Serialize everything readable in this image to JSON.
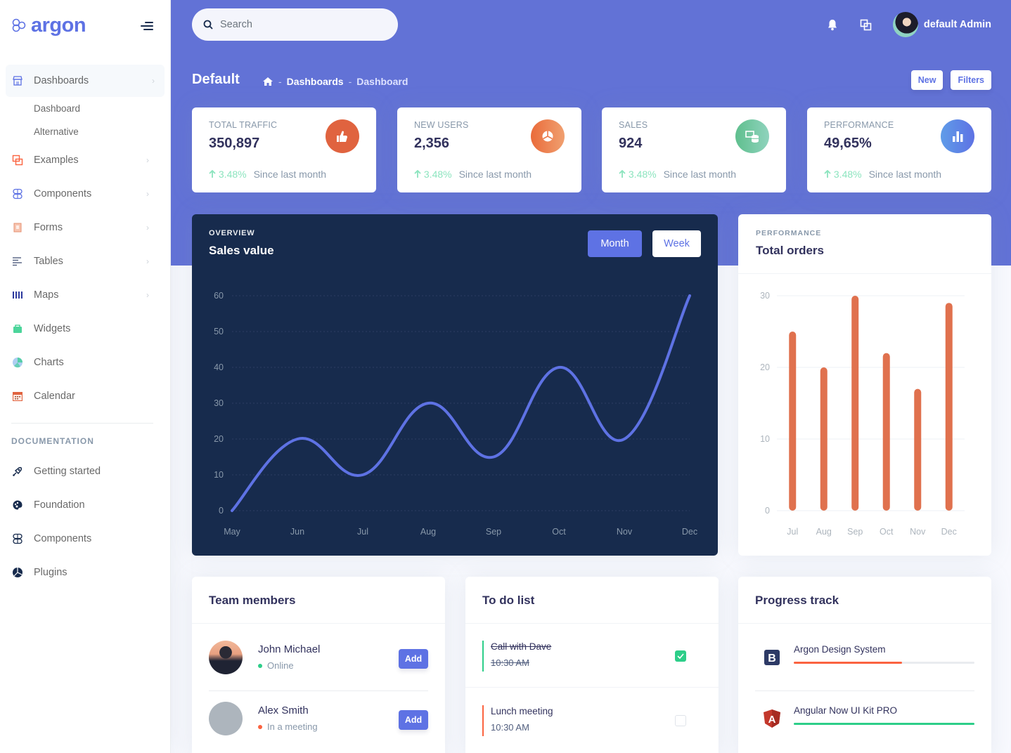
{
  "brand": {
    "name": "argon",
    "color": "#5e72e4"
  },
  "sidebar": {
    "items": [
      {
        "label": "Dashboards",
        "icon": "shop-icon",
        "has_chevron": true,
        "active": true,
        "children": [
          {
            "label": "Dashboard"
          },
          {
            "label": "Alternative"
          }
        ]
      },
      {
        "label": "Examples",
        "icon": "ungroup-icon",
        "has_chevron": true
      },
      {
        "label": "Components",
        "icon": "components-icon",
        "has_chevron": true
      },
      {
        "label": "Forms",
        "icon": "forms-icon",
        "has_chevron": true
      },
      {
        "label": "Tables",
        "icon": "align-left-icon",
        "has_chevron": true
      },
      {
        "label": "Maps",
        "icon": "map-icon",
        "has_chevron": true
      },
      {
        "label": "Widgets",
        "icon": "archive-icon",
        "has_chevron": false
      },
      {
        "label": "Charts",
        "icon": "pie-chart-icon",
        "has_chevron": false
      },
      {
        "label": "Calendar",
        "icon": "calendar-icon",
        "has_chevron": false
      }
    ],
    "documentation_heading": "DOCUMENTATION",
    "doc_items": [
      {
        "label": "Getting started",
        "icon": "spaceship-icon"
      },
      {
        "label": "Foundation",
        "icon": "palette-icon"
      },
      {
        "label": "Components",
        "icon": "ui-components-icon"
      },
      {
        "label": "Plugins",
        "icon": "plugins-icon"
      }
    ]
  },
  "header": {
    "search_placeholder": "Search",
    "user_name": "default Admin",
    "page_title": "Default",
    "breadcrumb": [
      "Dashboards",
      "Dashboard"
    ],
    "buttons": {
      "new": "New",
      "filters": "Filters"
    },
    "bg_color": "#6272d6"
  },
  "stats": [
    {
      "title": "TOTAL TRAFFIC",
      "value": "350,897",
      "change": "3.48%",
      "since": "Since last month",
      "icon": "active-40-icon",
      "color": "#e0633f"
    },
    {
      "title": "NEW USERS",
      "value": "2,356",
      "change": "3.48%",
      "since": "Since last month",
      "icon": "chart-pie-icon",
      "color": "#f0703a"
    },
    {
      "title": "SALES",
      "value": "924",
      "change": "3.48%",
      "since": "Since last month",
      "icon": "money-coins-icon",
      "color": "#2dce89"
    },
    {
      "title": "PERFORMANCE",
      "value": "49,65%",
      "change": "3.48%",
      "since": "Since last month",
      "icon": "chart-bar-icon",
      "color": "#5e72e4"
    }
  ],
  "sales_card": {
    "pretitle": "OVERVIEW",
    "title": "Sales value",
    "toggle": {
      "month": "Month",
      "week": "Week",
      "selected": "Month"
    }
  },
  "orders_card": {
    "pretitle": "PERFORMANCE",
    "title": "Total orders"
  },
  "chart_data": [
    {
      "type": "line",
      "title": "Sales value",
      "subtitle": "OVERVIEW",
      "categories": [
        "May",
        "Jun",
        "Jul",
        "Aug",
        "Sep",
        "Oct",
        "Nov",
        "Dec"
      ],
      "values": [
        0,
        20,
        10,
        30,
        15,
        40,
        20,
        60
      ],
      "ylim": [
        0,
        60
      ],
      "yticks": [
        0,
        10,
        20,
        30,
        40,
        50,
        60
      ],
      "grid": true,
      "line_color": "#5e72e4",
      "smooth": true
    },
    {
      "type": "bar",
      "title": "Total orders",
      "subtitle": "PERFORMANCE",
      "categories": [
        "Jul",
        "Aug",
        "Sep",
        "Oct",
        "Nov",
        "Dec"
      ],
      "values": [
        25,
        20,
        30,
        22,
        17,
        29
      ],
      "ylim": [
        0,
        30
      ],
      "yticks": [
        0,
        10,
        20,
        30
      ],
      "grid": true,
      "bar_color": "#e0714e"
    }
  ],
  "team": {
    "title": "Team members",
    "members": [
      {
        "name": "John Michael",
        "status": "Online",
        "status_color": "#2dce89",
        "action": "Add"
      },
      {
        "name": "Alex Smith",
        "status": "In a meeting",
        "status_color": "#f5365c",
        "action": "Add"
      }
    ]
  },
  "todo": {
    "title": "To do list",
    "items": [
      {
        "title": "Call with Dave",
        "time": "10:30 AM",
        "done": true,
        "bar_color": "#2dce89"
      },
      {
        "title": "Lunch meeting",
        "time": "10:30 AM",
        "done": false,
        "bar_color": "#fb6340"
      }
    ]
  },
  "progress": {
    "title": "Progress track",
    "items": [
      {
        "name": "Argon Design System",
        "percent": 60,
        "color": "#fb6340",
        "icon": "bootstrap-logo-icon"
      },
      {
        "name": "Angular Now UI Kit PRO",
        "percent": 100,
        "color": "#2dce89",
        "icon": "angular-logo-icon"
      }
    ]
  }
}
